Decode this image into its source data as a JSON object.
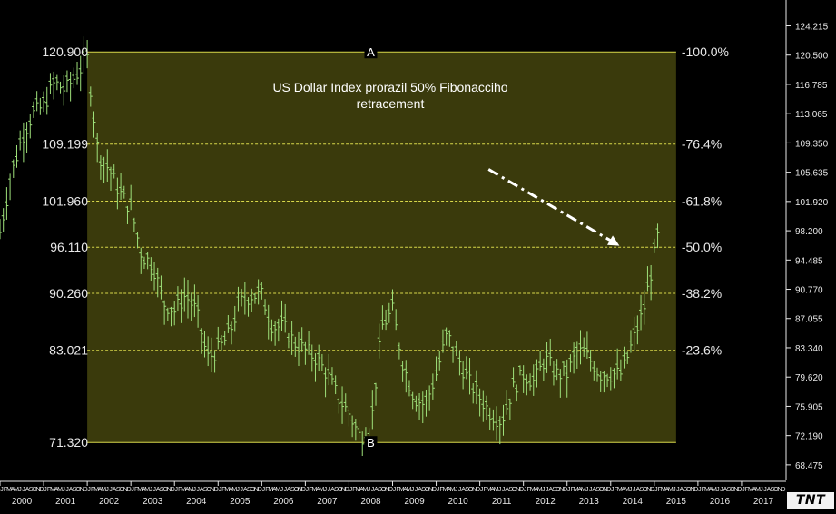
{
  "chart_data": {
    "type": "line",
    "title": "US Dollar Index prorazil 50% Fibonacciho retracement",
    "annotation": {
      "text_line1": "US Dollar Index prorazil 50% Fibonacciho",
      "text_line2": "retracement",
      "arrow_from": {
        "x": 2011.2,
        "y": 106.0
      },
      "arrow_to": {
        "x": 2014.2,
        "y": 96.3
      }
    },
    "xlim": [
      2000,
      2018
    ],
    "ylim": [
      66.5,
      127.5
    ],
    "year_ticks": [
      "2000",
      "2001",
      "2002",
      "2003",
      "2004",
      "2005",
      "2006",
      "2007",
      "2008",
      "2009",
      "2010",
      "2011",
      "2012",
      "2013",
      "2014",
      "2015",
      "2016",
      "2017"
    ],
    "right_axis_ticks": [
      "124.215",
      "120.500",
      "116.785",
      "113.065",
      "109.350",
      "105.635",
      "101.920",
      "98.200",
      "94.485",
      "90.770",
      "87.055",
      "83.340",
      "79.620",
      "75.905",
      "72.190",
      "68.475"
    ],
    "right_axis_values": [
      124.215,
      120.5,
      116.785,
      113.065,
      109.35,
      105.635,
      101.92,
      98.2,
      94.485,
      90.77,
      87.055,
      83.34,
      79.62,
      75.905,
      72.19,
      68.475
    ],
    "fibonacci": {
      "zone_x": [
        2002.0,
        2015.5
      ],
      "point_a_label": "A",
      "point_b_label": "B",
      "point_a_x": 2008.5,
      "point_b_x": 2008.5,
      "levels": [
        {
          "value": 120.9,
          "left_label": "120.900",
          "right_label": "-100.0%"
        },
        {
          "value": 109.199,
          "left_label": "109.199",
          "right_label": "-76.4%"
        },
        {
          "value": 101.96,
          "left_label": "101.960",
          "right_label": "-61.8%"
        },
        {
          "value": 96.11,
          "left_label": "96.110",
          "right_label": "-50.0%"
        },
        {
          "value": 90.26,
          "left_label": "90.260",
          "right_label": "-38.2%"
        },
        {
          "value": 83.021,
          "left_label": "83.021",
          "right_label": "-23.6%"
        },
        {
          "value": 71.32,
          "left_label": "71.320",
          "right_label": ""
        }
      ]
    },
    "series": [
      {
        "x": [
          2000.0,
          2000.25,
          2000.5,
          2000.75,
          2001.0,
          2001.25,
          2001.5,
          2001.75,
          2002.0,
          2002.25,
          2002.5,
          2002.75,
          2003.0,
          2003.25,
          2003.5,
          2003.75,
          2004.0,
          2004.25,
          2004.5,
          2004.75,
          2005.0,
          2005.25,
          2005.5,
          2005.75,
          2006.0,
          2006.25,
          2006.5,
          2006.75,
          2007.0,
          2007.25,
          2007.5,
          2007.75,
          2008.0,
          2008.25,
          2008.5,
          2008.75,
          2009.0,
          2009.25,
          2009.5,
          2009.75,
          2010.0,
          2010.25,
          2010.5,
          2010.75,
          2011.0,
          2011.25,
          2011.5,
          2011.75,
          2012.0,
          2012.25,
          2012.5,
          2012.75,
          2013.0,
          2013.25,
          2013.5,
          2013.75,
          2014.0,
          2014.25,
          2014.5,
          2014.75,
          2015.0,
          2015.1
        ],
        "values": [
          98.0,
          105.0,
          110.0,
          113.0,
          114.0,
          117.0,
          116.0,
          118.0,
          120.0,
          108.0,
          106.0,
          103.0,
          101.0,
          95.0,
          94.0,
          89.0,
          88.0,
          90.0,
          88.0,
          82.0,
          83.0,
          85.0,
          89.0,
          90.0,
          90.0,
          86.0,
          86.0,
          84.0,
          83.0,
          82.0,
          80.0,
          77.0,
          75.0,
          72.0,
          73.0,
          86.0,
          88.0,
          81.0,
          77.0,
          76.0,
          80.0,
          85.0,
          82.0,
          79.0,
          77.0,
          75.0,
          74.0,
          78.0,
          80.0,
          79.0,
          82.0,
          80.0,
          80.0,
          83.0,
          82.0,
          80.0,
          80.0,
          80.0,
          84.0,
          88.0,
          95.0,
          98.0
        ]
      }
    ]
  }
}
